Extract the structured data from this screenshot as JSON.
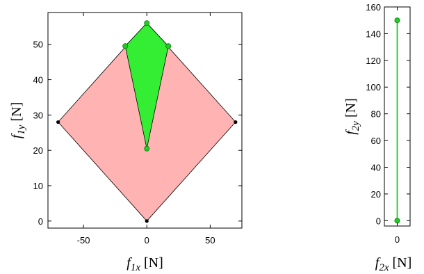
{
  "chart_data": [
    {
      "type": "area",
      "xlabel": "f1x [N]",
      "ylabel": "f1y [N]",
      "xlim": [
        -78,
        75
      ],
      "ylim": [
        -2,
        59
      ],
      "x_ticks": [
        -50,
        0,
        50
      ],
      "y_ticks": [
        0,
        10,
        20,
        30,
        40,
        50
      ],
      "grid": false,
      "regions": [
        {
          "fill": "#ffb3b3",
          "polygon": [
            [
              0,
              0
            ],
            [
              70,
              28
            ],
            [
              0,
              56
            ],
            [
              -70,
              28
            ]
          ],
          "points": [
            [
              0,
              0
            ],
            [
              70,
              28
            ],
            [
              -70,
              28
            ]
          ],
          "point_color": "#000000"
        },
        {
          "fill": "#33ee33",
          "polygon": [
            [
              0,
              56
            ],
            [
              17,
              49.5
            ],
            [
              0,
              20.5
            ],
            [
              -17,
              49.5
            ]
          ],
          "points": [
            [
              0,
              56
            ],
            [
              17,
              49.5
            ],
            [
              0,
              20.5
            ],
            [
              -17,
              49.5
            ]
          ],
          "point_color": "#22cc22"
        }
      ]
    },
    {
      "type": "line",
      "xlabel": "f2x [N]",
      "ylabel": "f2y [N]",
      "xlim": [
        -1,
        1
      ],
      "ylim": [
        -4,
        160
      ],
      "x_ticks": [
        0
      ],
      "y_ticks": [
        0,
        20,
        40,
        60,
        80,
        100,
        120,
        140,
        160
      ],
      "grid": false,
      "segment": {
        "color": "#22cc22",
        "points": [
          [
            0,
            0
          ],
          [
            0,
            150
          ]
        ]
      }
    }
  ]
}
